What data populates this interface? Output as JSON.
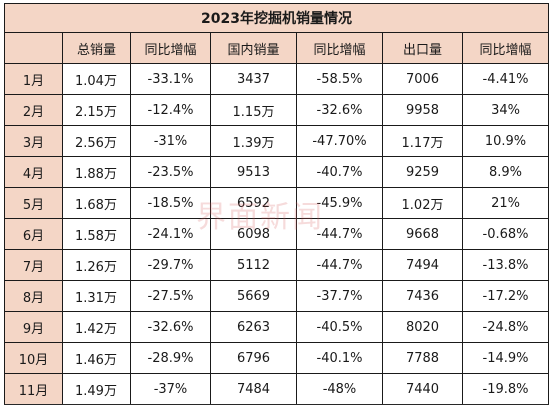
{
  "table": {
    "title": "2023年挖掘机销量情况",
    "headers": [
      "",
      "总销量",
      "同比增幅",
      "国内销量",
      "同比增幅",
      "出口量",
      "同比增幅"
    ],
    "rows": [
      [
        "1月",
        "1.04万",
        "-33.1%",
        "3437",
        "-58.5%",
        "7006",
        "-4.41%"
      ],
      [
        "2月",
        "2.15万",
        "-12.4%",
        "1.15万",
        "-32.6%",
        "9958",
        "34%"
      ],
      [
        "3月",
        "2.56万",
        "-31%",
        "1.39万",
        "-47.70%",
        "1.17万",
        "10.9%"
      ],
      [
        "4月",
        "1.88万",
        "-23.5%",
        "9513",
        "-40.7%",
        "9259",
        "8.9%"
      ],
      [
        "5月",
        "1.68万",
        "-18.5%",
        "6592",
        "-45.9%",
        "1.02万",
        "21%"
      ],
      [
        "6月",
        "1.58万",
        "-24.1%",
        "6098",
        "-44.7%",
        "9668",
        "-0.68%"
      ],
      [
        "7月",
        "1.26万",
        "-29.7%",
        "5112",
        "-44.7%",
        "7494",
        "-13.8%"
      ],
      [
        "8月",
        "1.31万",
        "-27.5%",
        "5669",
        "-37.7%",
        "7436",
        "-17.2%"
      ],
      [
        "9月",
        "1.42万",
        "-32.6%",
        "6263",
        "-40.5%",
        "8020",
        "-24.8%"
      ],
      [
        "10月",
        "1.46万",
        "-28.9%",
        "6796",
        "-40.1%",
        "7788",
        "-14.9%"
      ],
      [
        "11月",
        "1.49万",
        "-37%",
        "7484",
        "-48%",
        "7440",
        "-19.8%"
      ]
    ]
  },
  "watermark": {
    "text": "界面新闻"
  },
  "colors": {
    "header_fill": "#f4d6c6",
    "border": "#1a1a1a",
    "watermark": "#d65c5c"
  }
}
